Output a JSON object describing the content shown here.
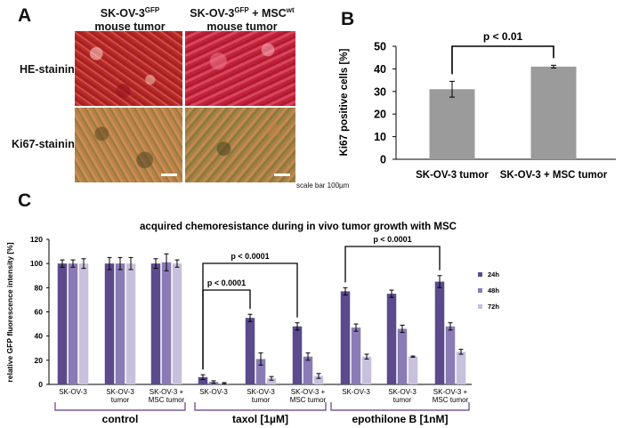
{
  "panel_a": {
    "letter": "A",
    "col1_header_line1": "SK-OV-3",
    "col1_header_sup": "GFP",
    "col1_header_line2": "mouse tumor",
    "col2_header_line1a": "SK-OV-3",
    "col2_header_sup1": "GFP",
    "col2_header_line1b": " + MSC",
    "col2_header_sup2": "wt",
    "col2_header_line2": "mouse tumor",
    "row1_label": "HE-staining",
    "row2_label": "Ki67-staining",
    "scale_bar_label": "scale bar 100µm"
  },
  "panel_b": {
    "letter": "B"
  },
  "panel_c": {
    "letter": "C"
  },
  "colors": {
    "bar_b": "#9b9b9b",
    "s24": "#5b4a8c",
    "s48": "#8a7ab5",
    "s72": "#c9c0de",
    "bracket_c": "#7a5a9a"
  },
  "chart_data": [
    {
      "type": "bar",
      "categories": [
        "SK-OV-3 tumor",
        "SK-OV-3 + MSC tumor"
      ],
      "values": [
        31,
        41
      ],
      "errors": [
        3.5,
        0.6
      ],
      "ylabel": "Ki67 positive cells [%]",
      "ylim": [
        0,
        50
      ],
      "yticks": [
        0,
        10,
        20,
        30,
        40,
        50
      ],
      "annotation": "p < 0.01",
      "grid": false
    },
    {
      "type": "bar",
      "title": "acquired chemoresistance during in vivo tumor growth with MSC",
      "ylabel": "relative GFP fluorescence intensity [%]",
      "ylim": [
        0,
        120
      ],
      "yticks": [
        0,
        20,
        40,
        60,
        80,
        100,
        120
      ],
      "grid": false,
      "legend_position": "right",
      "categories": [
        "SK-OV-3",
        "SK-OV-3 tumor",
        "SK-OV-3 + MSC tumor",
        "SK-OV-3",
        "SK-OV-3 tumor",
        "SK-OV-3 + MSC tumor",
        "SK-OV-3",
        "SK-OV-3 tumor",
        "SK-OV-3 + MSC tumor"
      ],
      "category_labels": [
        [
          "SK-OV-3"
        ],
        [
          "SK-OV-3",
          "tumor"
        ],
        [
          "SK-OV-3 +",
          "MSC tumor"
        ],
        [
          "SK-OV-3"
        ],
        [
          "SK-OV-3",
          "tumor"
        ],
        [
          "SK-OV-3 +",
          "MSC tumor"
        ],
        [
          "SK-OV-3"
        ],
        [
          "SK-OV-3",
          "tumor"
        ],
        [
          "SK-OV-3 +",
          "MSC tumor"
        ]
      ],
      "groups": [
        "control",
        "taxol [1µM]",
        "epothilone B [1nM]"
      ],
      "series": [
        {
          "name": "24h",
          "values": [
            100,
            100,
            100,
            6,
            55,
            48,
            77,
            75,
            85
          ],
          "errors": [
            3,
            5,
            4,
            2,
            3,
            3,
            3,
            3,
            5
          ]
        },
        {
          "name": "48h",
          "values": [
            100,
            100,
            101,
            2,
            21,
            23,
            47,
            46,
            48
          ],
          "errors": [
            3,
            5,
            7,
            1,
            5,
            3,
            3,
            3,
            3
          ]
        },
        {
          "name": "72h",
          "values": [
            100,
            100,
            100,
            1,
            5,
            7,
            23,
            23,
            27
          ],
          "errors": [
            4,
            5,
            3,
            0.5,
            1.5,
            2,
            2,
            0.5,
            2
          ]
        }
      ],
      "annotations": [
        {
          "text": "p < 0.0001",
          "from": 3,
          "to": 4
        },
        {
          "text": "p < 0.0001",
          "from": 3,
          "to": 5
        },
        {
          "text": "p < 0.0001",
          "from": 6,
          "to": 8
        }
      ]
    }
  ]
}
